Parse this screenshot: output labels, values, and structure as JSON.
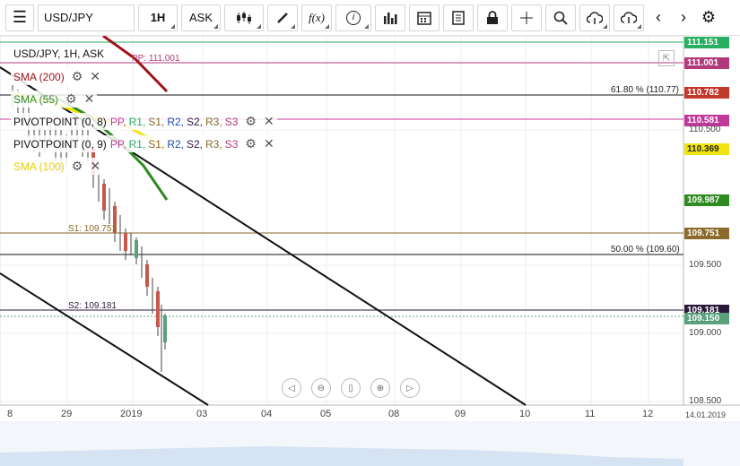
{
  "toolbar": {
    "symbol": "USD/JPY",
    "timeframe": "1H",
    "price_type": "ASK"
  },
  "legend": {
    "title": "USD/JPY, 1H, ASK",
    "sma200": "SMA (200)",
    "sma55": "SMA (55)",
    "sma100": "SMA (100)",
    "pivot1": {
      "name": "PIVOTPOINT (0, 8)",
      "levels": [
        "PP,",
        "R1,",
        "S1,",
        "R2,",
        "S2,",
        "R3,",
        "S3"
      ]
    },
    "pivot2": {
      "name": "PIVOTPOINT (0, 9)",
      "levels": [
        "PP,",
        "R1,",
        "S1,",
        "R2,",
        "S2,",
        "R3,",
        "S3"
      ]
    }
  },
  "chart_lines": {
    "pp_label": "PP: 111.001",
    "fib618": "61.80 % (110.77)",
    "s1_label": "S1: 109.751",
    "fib50": "50.00 % (109.60)",
    "s2_label": "S2: 109.181"
  },
  "price_labels": [
    {
      "text": "111.151",
      "color": "#27ae60"
    },
    {
      "text": "111.001",
      "color": "#b03a7a"
    },
    {
      "text": "110.782",
      "color": "#c0392b"
    },
    {
      "text": "110.581",
      "color": "#c0399a"
    },
    {
      "text": "110.369",
      "color": "#f1e40f"
    },
    {
      "text": "109.987",
      "color": "#2e8b1f"
    },
    {
      "text": "109.751",
      "color": "#8b6a2b"
    },
    {
      "text": "109.181",
      "color": "#2a1a3a"
    },
    {
      "text": "109.150",
      "color": "#5aa07a"
    }
  ],
  "y_axis": [
    "110.500",
    "109.500",
    "109.000",
    "108.500"
  ],
  "x_axis": [
    "8",
    "29",
    "2019",
    "03",
    "04",
    "05",
    "08",
    "09",
    "10",
    "11",
    "12"
  ],
  "date_label": "14.01.2019"
}
